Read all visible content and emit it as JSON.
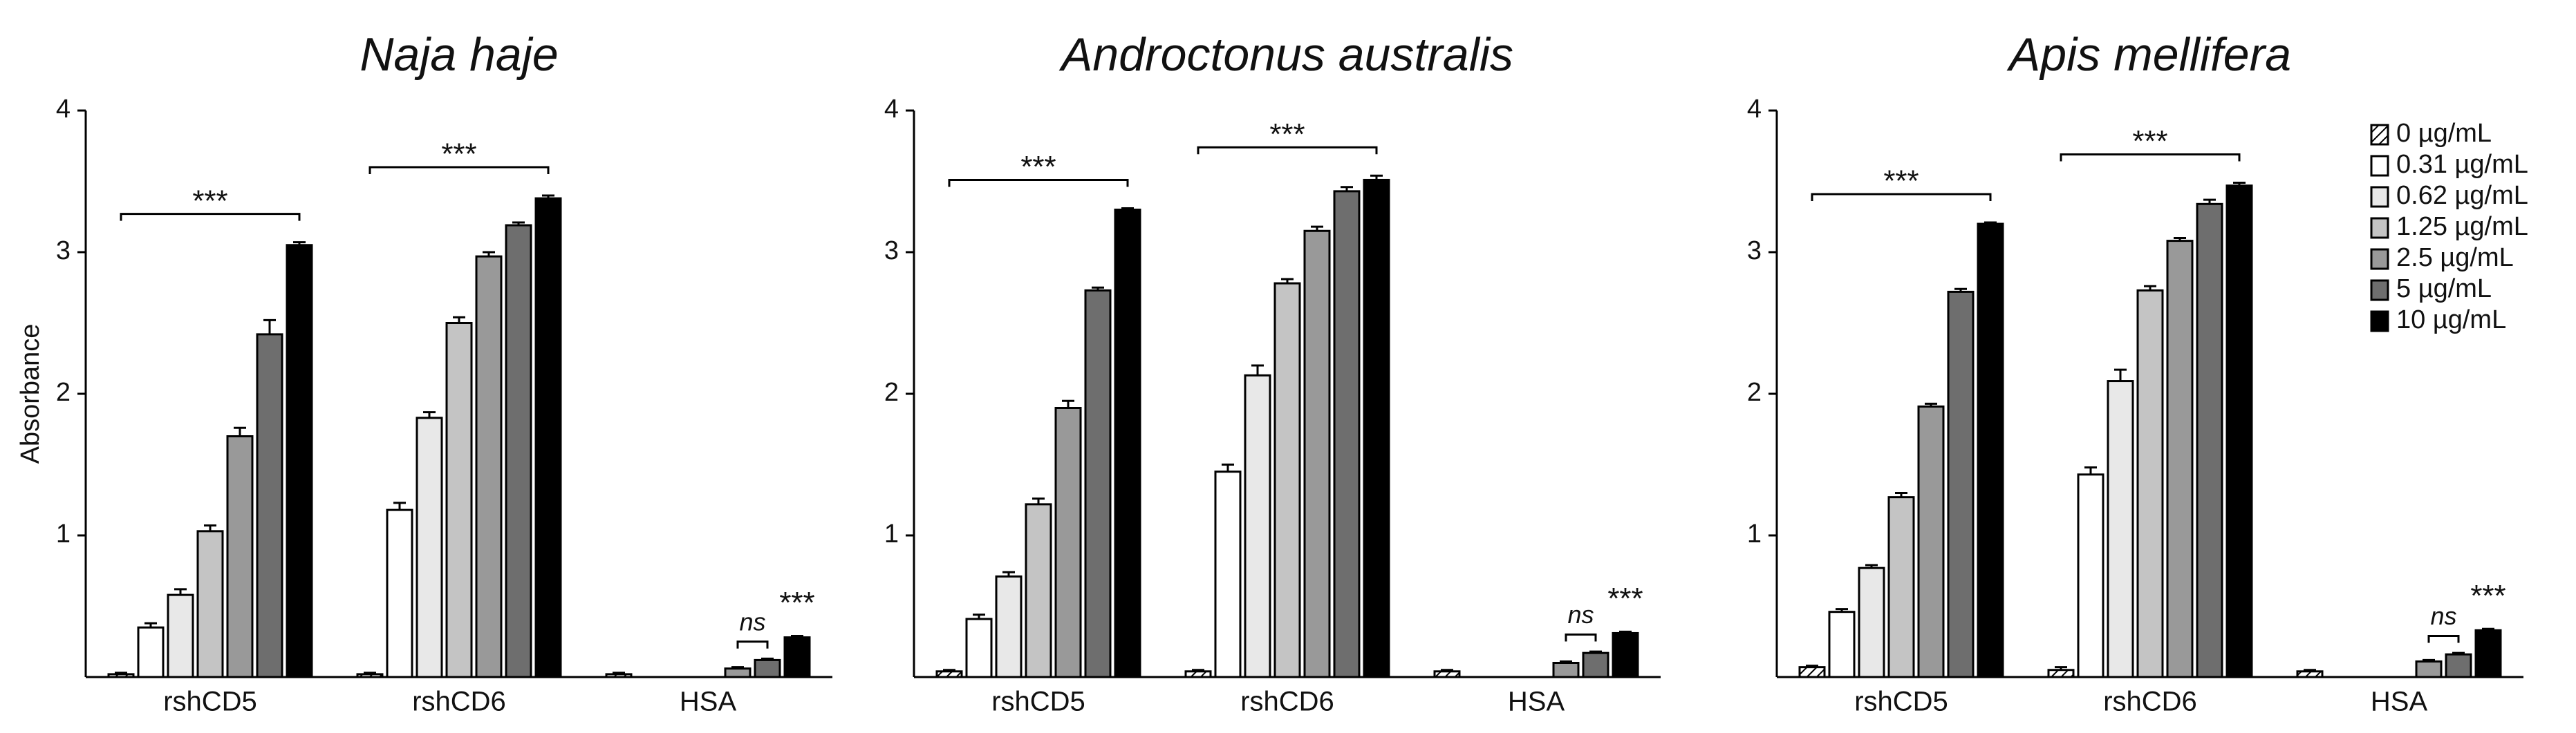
{
  "chart_data": [
    {
      "type": "bar",
      "title": "Naja haje",
      "ylabel": "Absorbance",
      "categories": [
        "rshCD5",
        "rshCD6",
        "HSA"
      ],
      "ylim": [
        0,
        4
      ],
      "yticks": [
        1,
        2,
        3,
        4
      ],
      "annotations": [
        "***",
        "***",
        "ns",
        "***"
      ],
      "series": [
        {
          "color": "#ffffff",
          "hatch": true,
          "values": [
            0.02,
            0.02,
            0.02
          ],
          "errors": [
            0.01,
            0.01,
            0.01
          ]
        },
        {
          "color": "#ffffff",
          "values": [
            0.35,
            1.18,
            null
          ],
          "errors": [
            0.03,
            0.05,
            null
          ]
        },
        {
          "color": "#e8e8e8",
          "values": [
            0.58,
            1.83,
            null
          ],
          "errors": [
            0.04,
            0.04,
            null
          ]
        },
        {
          "color": "#c4c4c4",
          "values": [
            1.03,
            2.5,
            null
          ],
          "errors": [
            0.04,
            0.04,
            null
          ]
        },
        {
          "color": "#999999",
          "values": [
            1.7,
            2.97,
            0.06
          ],
          "errors": [
            0.06,
            0.03,
            0.01
          ]
        },
        {
          "color": "#6e6e6e",
          "values": [
            2.42,
            3.19,
            0.12
          ],
          "errors": [
            0.1,
            0.02,
            0.01
          ]
        },
        {
          "color": "#000000",
          "values": [
            3.05,
            3.38,
            0.28
          ],
          "errors": [
            0.02,
            0.02,
            0.01
          ]
        }
      ]
    },
    {
      "type": "bar",
      "title": "Androctonus australis",
      "categories": [
        "rshCD5",
        "rshCD6",
        "HSA"
      ],
      "ylim": [
        0,
        4
      ],
      "yticks": [
        1,
        2,
        3,
        4
      ],
      "annotations": [
        "***",
        "***",
        "ns",
        "***"
      ],
      "series": [
        {
          "color": "#ffffff",
          "hatch": true,
          "values": [
            0.04,
            0.04,
            0.04
          ],
          "errors": [
            0.01,
            0.01,
            0.01
          ]
        },
        {
          "color": "#ffffff",
          "values": [
            0.41,
            1.45,
            null
          ],
          "errors": [
            0.03,
            0.05,
            null
          ]
        },
        {
          "color": "#e8e8e8",
          "values": [
            0.71,
            2.13,
            null
          ],
          "errors": [
            0.03,
            0.07,
            null
          ]
        },
        {
          "color": "#c4c4c4",
          "values": [
            1.22,
            2.78,
            null
          ],
          "errors": [
            0.04,
            0.03,
            null
          ]
        },
        {
          "color": "#999999",
          "values": [
            1.9,
            3.15,
            0.1
          ],
          "errors": [
            0.05,
            0.03,
            0.01
          ]
        },
        {
          "color": "#6e6e6e",
          "values": [
            2.73,
            3.43,
            0.17
          ],
          "errors": [
            0.02,
            0.03,
            0.01
          ]
        },
        {
          "color": "#000000",
          "values": [
            3.3,
            3.51,
            0.31
          ],
          "errors": [
            0.01,
            0.03,
            0.01
          ]
        }
      ]
    },
    {
      "type": "bar",
      "title": "Apis mellifera",
      "legend": "upper right",
      "categories": [
        "rshCD5",
        "rshCD6",
        "HSA"
      ],
      "ylim": [
        0,
        4
      ],
      "yticks": [
        1,
        2,
        3,
        4
      ],
      "annotations": [
        "***",
        "***",
        "ns",
        "***"
      ],
      "series": [
        {
          "name": "0 µg/mL",
          "color": "#ffffff",
          "hatch": true,
          "values": [
            0.07,
            0.05,
            0.04
          ],
          "errors": [
            0.01,
            0.02,
            0.01
          ]
        },
        {
          "name": "0.31 µg/mL",
          "color": "#ffffff",
          "values": [
            0.46,
            1.43,
            null
          ],
          "errors": [
            0.02,
            0.05,
            null
          ]
        },
        {
          "name": "0.62 µg/mL",
          "color": "#e8e8e8",
          "values": [
            0.77,
            2.09,
            null
          ],
          "errors": [
            0.02,
            0.08,
            null
          ]
        },
        {
          "name": "1.25 µg/mL",
          "color": "#c4c4c4",
          "values": [
            1.27,
            2.73,
            null
          ],
          "errors": [
            0.03,
            0.03,
            null
          ]
        },
        {
          "name": "2.5 µg/mL",
          "color": "#999999",
          "values": [
            1.91,
            3.08,
            0.11
          ],
          "errors": [
            0.02,
            0.02,
            0.01
          ]
        },
        {
          "name": "5 µg/mL",
          "color": "#6e6e6e",
          "values": [
            2.72,
            3.34,
            0.16
          ],
          "errors": [
            0.02,
            0.03,
            0.01
          ]
        },
        {
          "name": "10 µg/mL",
          "color": "#000000",
          "values": [
            3.2,
            3.47,
            0.33
          ],
          "errors": [
            0.01,
            0.02,
            0.01
          ]
        }
      ]
    }
  ]
}
